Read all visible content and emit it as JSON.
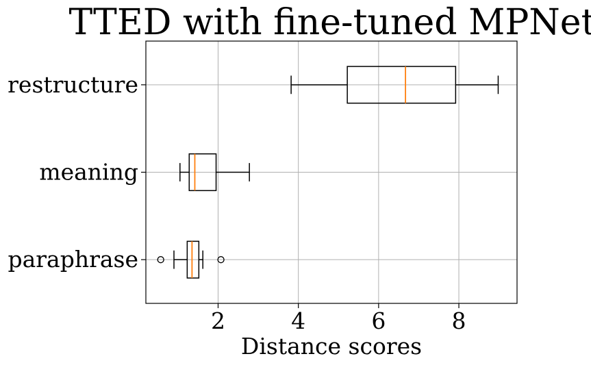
{
  "chart_data": {
    "type": "boxplot",
    "orientation": "horizontal",
    "title": "TTED with fine-tuned MPNet",
    "xlabel": "Distance scores",
    "ylabel": "",
    "xlim": [
      0.2,
      9.45
    ],
    "xticks": [
      2,
      4,
      6,
      8
    ],
    "xtick_labels": [
      "2",
      "4",
      "6",
      "8"
    ],
    "grid": true,
    "categories": [
      "paraphrase",
      "meaning",
      "restructure"
    ],
    "boxes": [
      {
        "name": "paraphrase",
        "whislo": 0.9,
        "q1": 1.23,
        "med": 1.35,
        "q3": 1.52,
        "whishi": 1.62,
        "fliers": [
          0.57,
          2.07
        ]
      },
      {
        "name": "meaning",
        "whislo": 1.05,
        "q1": 1.28,
        "med": 1.42,
        "q3": 1.95,
        "whishi": 2.78,
        "fliers": []
      },
      {
        "name": "restructure",
        "whislo": 3.82,
        "q1": 5.22,
        "med": 6.67,
        "q3": 7.92,
        "whishi": 8.98,
        "fliers": []
      }
    ],
    "colors": {
      "median": "#ff7f0e",
      "grid": "#b0b0b0",
      "box": "#000000"
    }
  }
}
